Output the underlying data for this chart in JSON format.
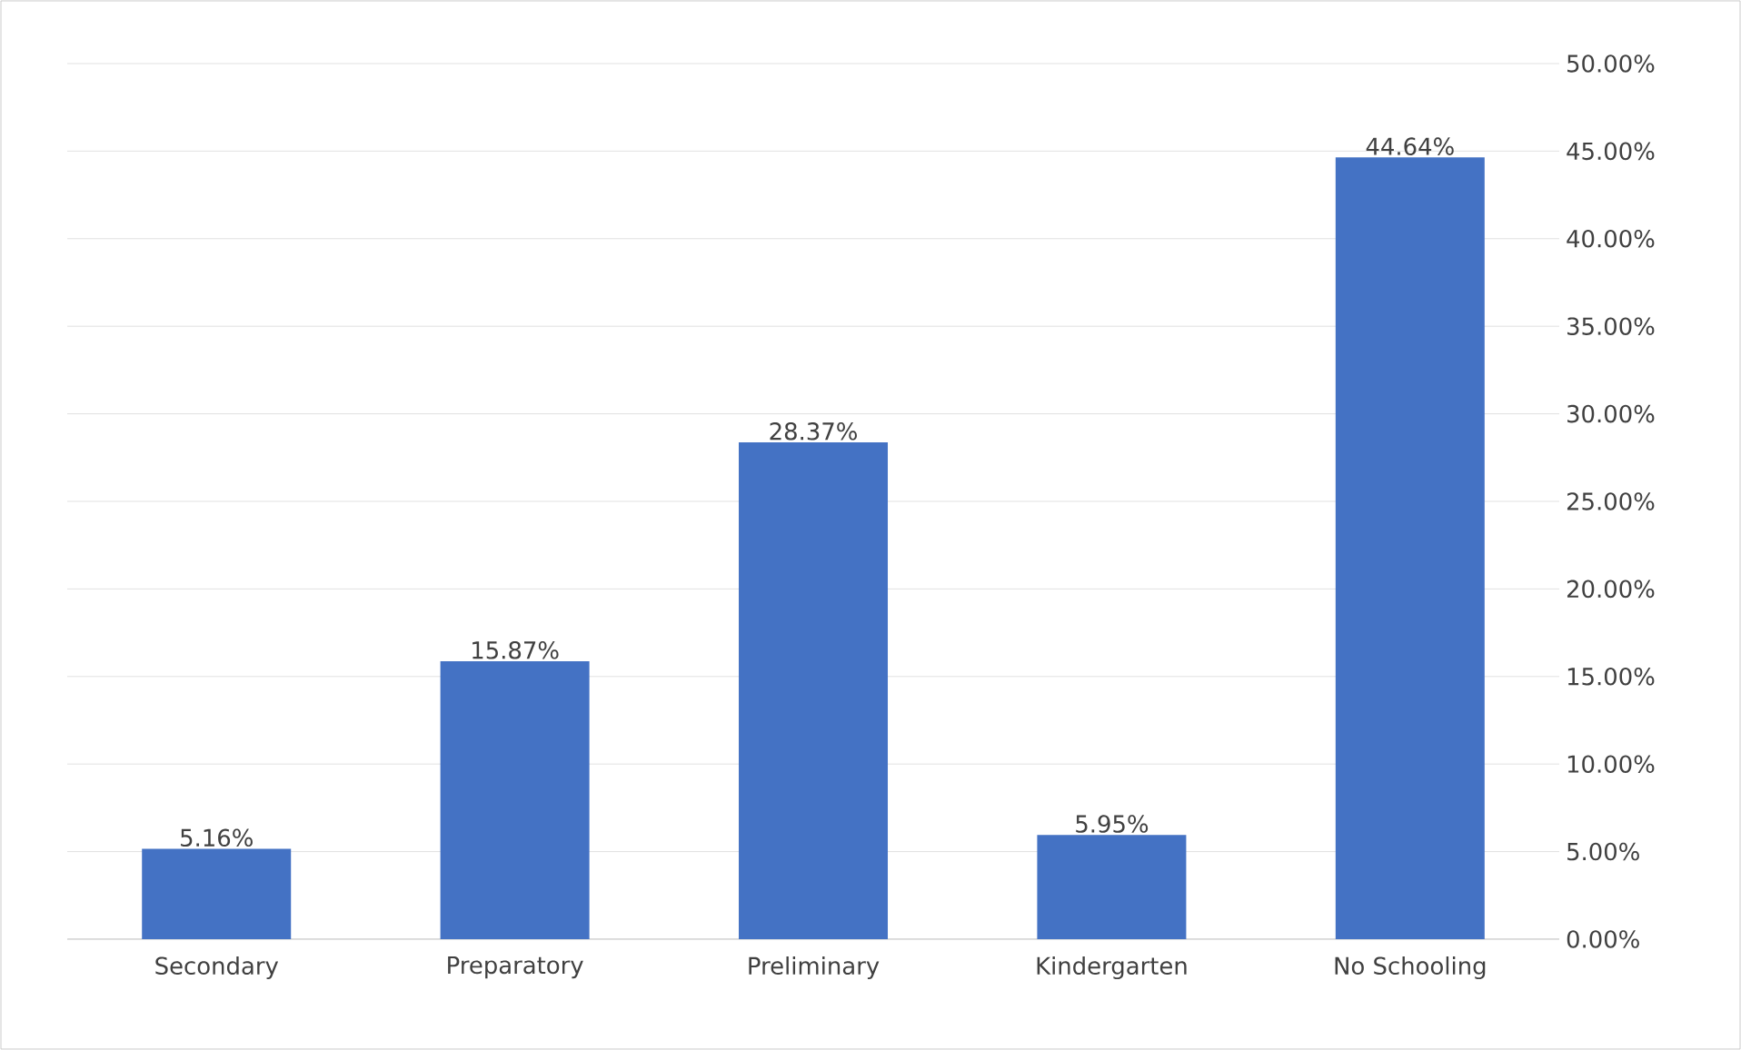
{
  "chart_data": {
    "type": "bar",
    "categories": [
      "Secondary",
      "Preparatory",
      "Preliminary",
      "Kindergarten",
      "No Schooling"
    ],
    "values": [
      5.16,
      15.87,
      28.37,
      5.95,
      44.64
    ],
    "value_labels": [
      "5.16%",
      "15.87%",
      "28.37%",
      "5.95%",
      "44.64%"
    ],
    "color": "#4472c4",
    "ylim": [
      0,
      50
    ],
    "yticks": [
      {
        "value": 0,
        "label": "0.00%"
      },
      {
        "value": 5,
        "label": "5.00%"
      },
      {
        "value": 10,
        "label": "10.00%"
      },
      {
        "value": 15,
        "label": "15.00%"
      },
      {
        "value": 20,
        "label": "20.00%"
      },
      {
        "value": 25,
        "label": "25.00%"
      },
      {
        "value": 30,
        "label": "30.00%"
      },
      {
        "value": 35,
        "label": "35.00%"
      },
      {
        "value": 40,
        "label": "40.00%"
      },
      {
        "value": 45,
        "label": "45.00%"
      },
      {
        "value": 50,
        "label": "50.00%"
      }
    ],
    "grid": "y"
  }
}
